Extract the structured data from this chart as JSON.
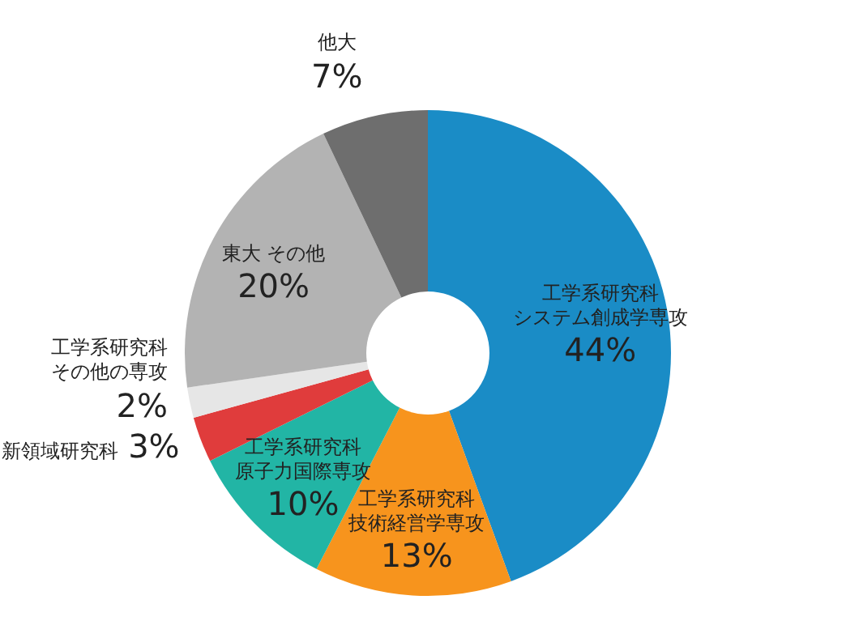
{
  "chart_data": {
    "type": "donut",
    "categories": [
      "工学系研究科システム創成学専攻",
      "工学系研究科技術経営学専攻",
      "工学系研究科原子力国際専攻",
      "新領域研究科",
      "工学系研究科その他の専攻",
      "東大 その他",
      "他大"
    ],
    "values": [
      44,
      13,
      10,
      3,
      2,
      20,
      7
    ],
    "value_labels": [
      "44%",
      "13%",
      "10%",
      "3%",
      "2%",
      "20%",
      "7%"
    ],
    "colors": [
      "#1a8cc6",
      "#f7941d",
      "#22b5a5",
      "#e03c3c",
      "#e6e6e6",
      "#b3b3b3",
      "#6e6e6e"
    ],
    "legend": false
  }
}
